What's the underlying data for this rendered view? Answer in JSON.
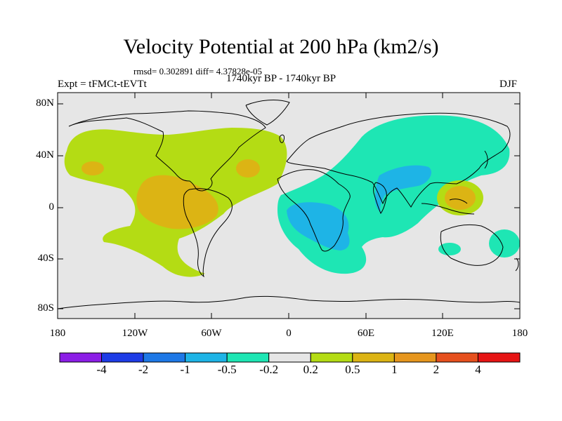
{
  "title": "Velocity Potential at 200 hPa (km2/s)",
  "stats": "rmsd= 0.302891  diff= 4.37828e-05",
  "experiment": "Expt = tFMCt-tEVTt",
  "period": "1740kyr BP - 1740kyr BP",
  "season": "DJF",
  "lat_ticks": [
    "80N",
    "40N",
    "0",
    "40S",
    "80S"
  ],
  "lon_ticks": [
    "180",
    "120W",
    "60W",
    "0",
    "60E",
    "120E",
    "180"
  ],
  "colorbar": {
    "colors": [
      "#8c1ee6",
      "#1e3ce6",
      "#1e78e6",
      "#1eb4e6",
      "#1ee6b4",
      "#e6e6e6",
      "#b4dc14",
      "#dcb414",
      "#e6961e",
      "#e6501e",
      "#e61414"
    ],
    "labels": [
      "-4",
      "-2",
      "-1",
      "-0.5",
      "-0.2",
      "0.2",
      "0.5",
      "1",
      "2",
      "4"
    ]
  },
  "map_colors": {
    "background": "#e6e6e6",
    "positive_low": "#b4dc14",
    "positive_mid": "#dcb414",
    "positive_high": "#e6961e",
    "negative_low": "#1ee6b4",
    "negative_mid": "#1eb4e6"
  }
}
